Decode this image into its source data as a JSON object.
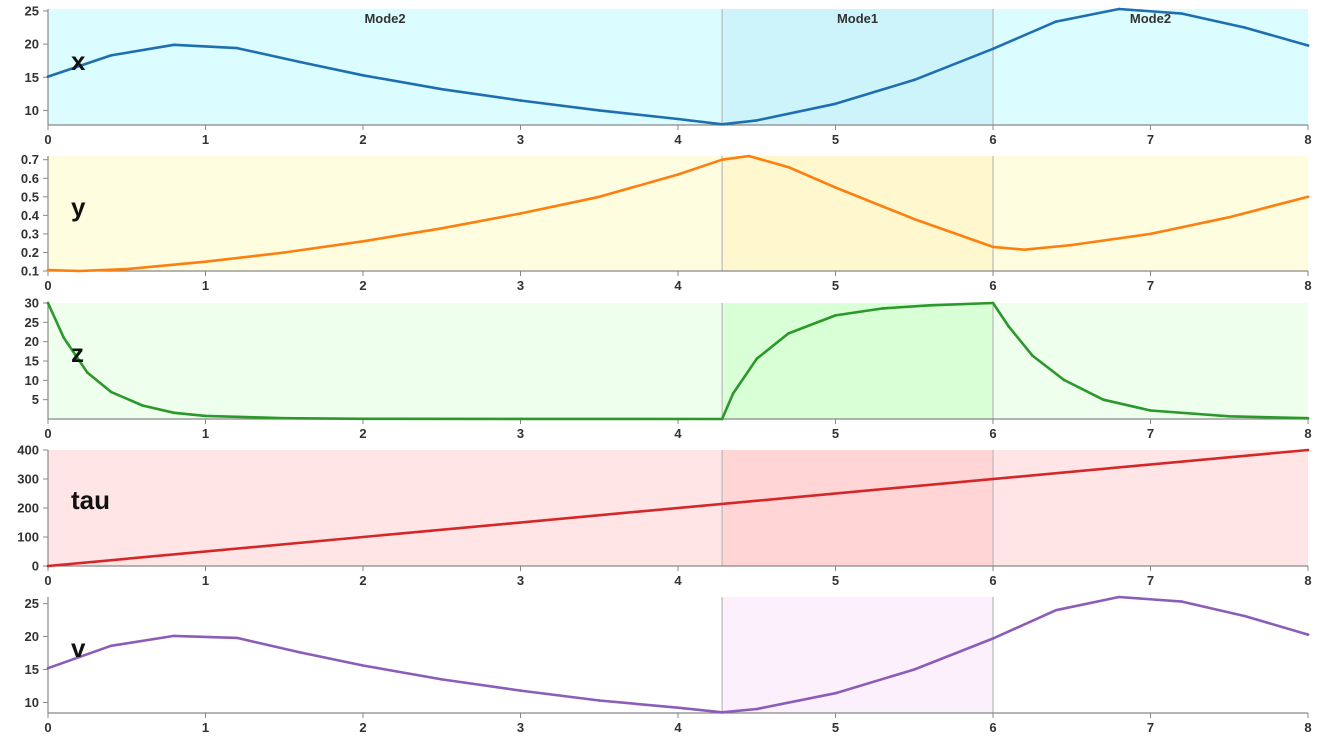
{
  "chart_data": {
    "type": "line",
    "x_range": [
      0,
      8
    ],
    "x_ticks": [
      0,
      1,
      2,
      3,
      4,
      5,
      6,
      7,
      8
    ],
    "mode_switches": [
      4.28,
      6.0
    ],
    "modes": [
      {
        "label": "Mode2",
        "start": 0,
        "end": 4.28
      },
      {
        "label": "Mode1",
        "start": 4.28,
        "end": 6.0
      },
      {
        "label": "Mode2",
        "start": 6.0,
        "end": 8
      }
    ],
    "panels": [
      {
        "label": "x",
        "color": "#1f6fb0",
        "bg": "#dcfdff",
        "bg_mode": "#cdf4fb",
        "ylim": [
          7.8,
          25.3
        ],
        "y_ticks": [
          10,
          15,
          20,
          25
        ],
        "show_modes": true,
        "x": [
          0,
          0.4,
          0.8,
          1.2,
          1.6,
          2.0,
          2.5,
          3.0,
          3.5,
          4.0,
          4.28,
          4.5,
          5.0,
          5.5,
          6.0,
          6.4,
          6.8,
          7.2,
          7.6,
          8.0
        ],
        "y": [
          15.1,
          18.3,
          19.9,
          19.4,
          17.3,
          15.3,
          13.2,
          11.5,
          10.0,
          8.7,
          7.9,
          8.5,
          11.0,
          14.6,
          19.3,
          23.4,
          25.3,
          24.6,
          22.5,
          19.8
        ]
      },
      {
        "label": "y",
        "color": "#ff7f0e",
        "bg": "#fffde0",
        "bg_mode": "#fff8cf",
        "ylim": [
          0.1,
          0.72
        ],
        "y_ticks": [
          0.1,
          0.2,
          0.3,
          0.4,
          0.5,
          0.6,
          0.7
        ],
        "show_modes": false,
        "x": [
          0,
          0.2,
          0.5,
          1.0,
          1.5,
          2.0,
          2.5,
          3.0,
          3.5,
          4.0,
          4.28,
          4.45,
          4.7,
          5.0,
          5.5,
          6.0,
          6.2,
          6.5,
          7.0,
          7.5,
          8.0
        ],
        "y": [
          0.105,
          0.1,
          0.11,
          0.15,
          0.2,
          0.26,
          0.33,
          0.41,
          0.5,
          0.62,
          0.7,
          0.72,
          0.66,
          0.55,
          0.38,
          0.23,
          0.215,
          0.24,
          0.3,
          0.39,
          0.5
        ]
      },
      {
        "label": "z",
        "color": "#2a982a",
        "bg": "#efffed",
        "bg_mode": "#d8ffd6",
        "ylim": [
          0,
          30
        ],
        "y_ticks": [
          5,
          10,
          15,
          20,
          25,
          30
        ],
        "show_modes": false,
        "x": [
          0,
          0.1,
          0.25,
          0.4,
          0.6,
          0.8,
          1.0,
          1.5,
          2.0,
          3.0,
          4.28,
          4.35,
          4.5,
          4.7,
          5.0,
          5.3,
          5.6,
          6.0,
          6.1,
          6.25,
          6.45,
          6.7,
          7.0,
          7.5,
          8.0
        ],
        "y": [
          30,
          21,
          12,
          7,
          3.5,
          1.6,
          0.8,
          0.2,
          0.05,
          0.02,
          0,
          6.6,
          15.6,
          22.1,
          26.8,
          28.6,
          29.4,
          30,
          23.9,
          16.4,
          10.1,
          5.0,
          2.2,
          0.7,
          0.2
        ]
      },
      {
        "label": "tau",
        "color": "#d62728",
        "bg": "#ffe5e6",
        "bg_mode": "#ffd5d6",
        "ylim": [
          0,
          400
        ],
        "y_ticks": [
          0,
          100,
          200,
          300,
          400
        ],
        "show_modes": false,
        "x": [
          0,
          8
        ],
        "y": [
          0,
          400
        ]
      },
      {
        "label": "v",
        "color": "#8b5db8",
        "bg": "#ffffff",
        "bg_mode": "#fdf0fd",
        "ylim": [
          8.4,
          26.0
        ],
        "y_ticks": [
          10,
          15,
          20,
          25
        ],
        "show_modes": false,
        "x": [
          0,
          0.4,
          0.8,
          1.2,
          1.6,
          2.0,
          2.5,
          3.0,
          3.5,
          4.0,
          4.28,
          4.5,
          5.0,
          5.5,
          6.0,
          6.4,
          6.8,
          7.2,
          7.6,
          8.0
        ],
        "y": [
          15.2,
          18.6,
          20.1,
          19.8,
          17.6,
          15.6,
          13.5,
          11.8,
          10.3,
          9.2,
          8.5,
          9.0,
          11.4,
          15.0,
          19.7,
          24.0,
          26.0,
          25.3,
          23.1,
          20.3
        ]
      }
    ]
  }
}
